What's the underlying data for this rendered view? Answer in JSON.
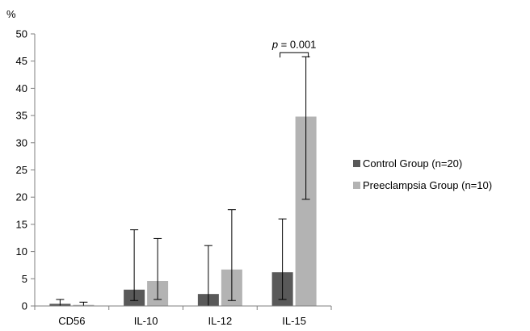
{
  "chart_data": {
    "type": "bar",
    "title": "",
    "xlabel": "",
    "ylabel": "%",
    "ylim": [
      0,
      50
    ],
    "yticks": [
      0,
      5,
      10,
      15,
      20,
      25,
      30,
      35,
      40,
      45,
      50
    ],
    "categories": [
      "CD56",
      "IL-10",
      "IL-12",
      "IL-15"
    ],
    "series": [
      {
        "name": "Control Group (n=20)",
        "color": "#595959",
        "values": [
          0.4,
          3.0,
          2.2,
          6.2
        ],
        "err_low": [
          0.0,
          1.0,
          0.0,
          1.2
        ],
        "err_high": [
          1.2,
          14.0,
          11.1,
          16.0
        ]
      },
      {
        "name": "Preeclampsia Group (n=10)",
        "color": "#b3b3b3",
        "values": [
          0.2,
          4.6,
          6.7,
          34.8
        ],
        "err_low": [
          0.0,
          1.2,
          1.0,
          19.6
        ],
        "err_high": [
          0.7,
          12.4,
          17.7,
          45.8
        ]
      }
    ],
    "annotation": {
      "category": "IL-15",
      "p_symbol": "p",
      "p_rest": " = 0.001"
    },
    "grid": false,
    "legend_position": "right"
  }
}
